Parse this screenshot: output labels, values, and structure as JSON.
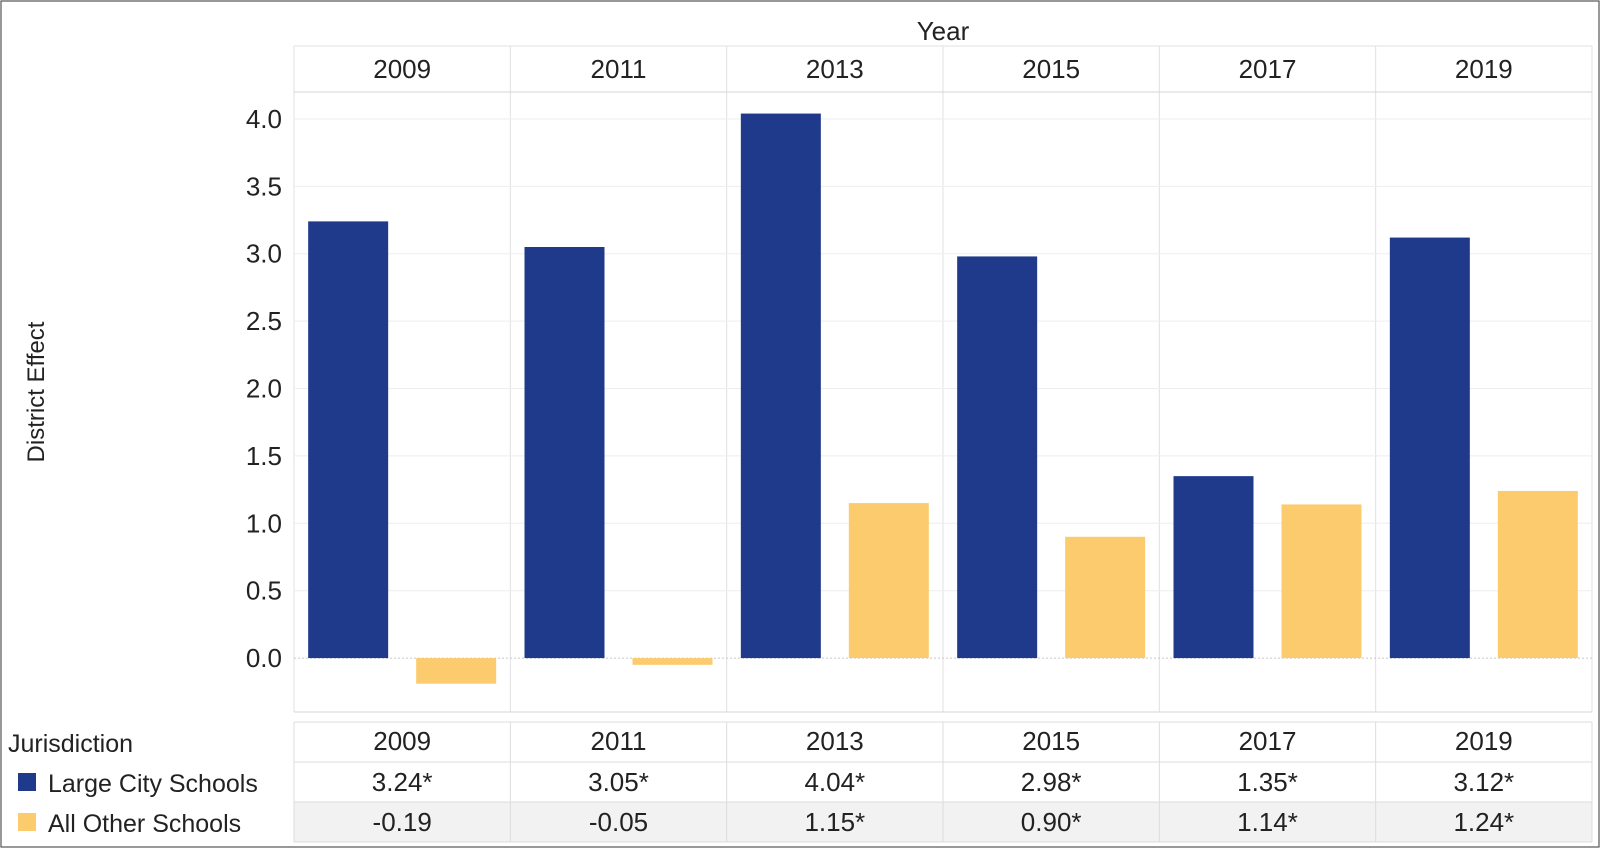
{
  "chart_data": {
    "type": "bar",
    "column_header": "Year",
    "categories": [
      "2009",
      "2011",
      "2013",
      "2015",
      "2017",
      "2019"
    ],
    "ylabel": "District Effect",
    "ylim": [
      -0.4,
      4.2
    ],
    "yticks": [
      "0.0",
      "0.5",
      "1.0",
      "1.5",
      "2.0",
      "2.5",
      "3.0",
      "3.5",
      "4.0"
    ],
    "ytick_values": [
      0,
      0.5,
      1.0,
      1.5,
      2.0,
      2.5,
      3.0,
      3.5,
      4.0
    ],
    "grid": true,
    "legend_title": "Jurisdiction",
    "legend_position": "bottom-left",
    "series": [
      {
        "name": "Large City Schools",
        "color": "#1f3a8a",
        "values": [
          3.24,
          3.05,
          4.04,
          2.98,
          1.35,
          3.12
        ],
        "labels": [
          "3.24*",
          "3.05*",
          "4.04*",
          "2.98*",
          "1.35*",
          "3.12*"
        ]
      },
      {
        "name": "All Other Schools",
        "color": "#fccb6e",
        "values": [
          -0.19,
          -0.05,
          1.15,
          0.9,
          1.14,
          1.24
        ],
        "labels": [
          "-0.19",
          "-0.05",
          "1.15*",
          "0.90*",
          "1.14*",
          "1.24*"
        ]
      }
    ]
  }
}
